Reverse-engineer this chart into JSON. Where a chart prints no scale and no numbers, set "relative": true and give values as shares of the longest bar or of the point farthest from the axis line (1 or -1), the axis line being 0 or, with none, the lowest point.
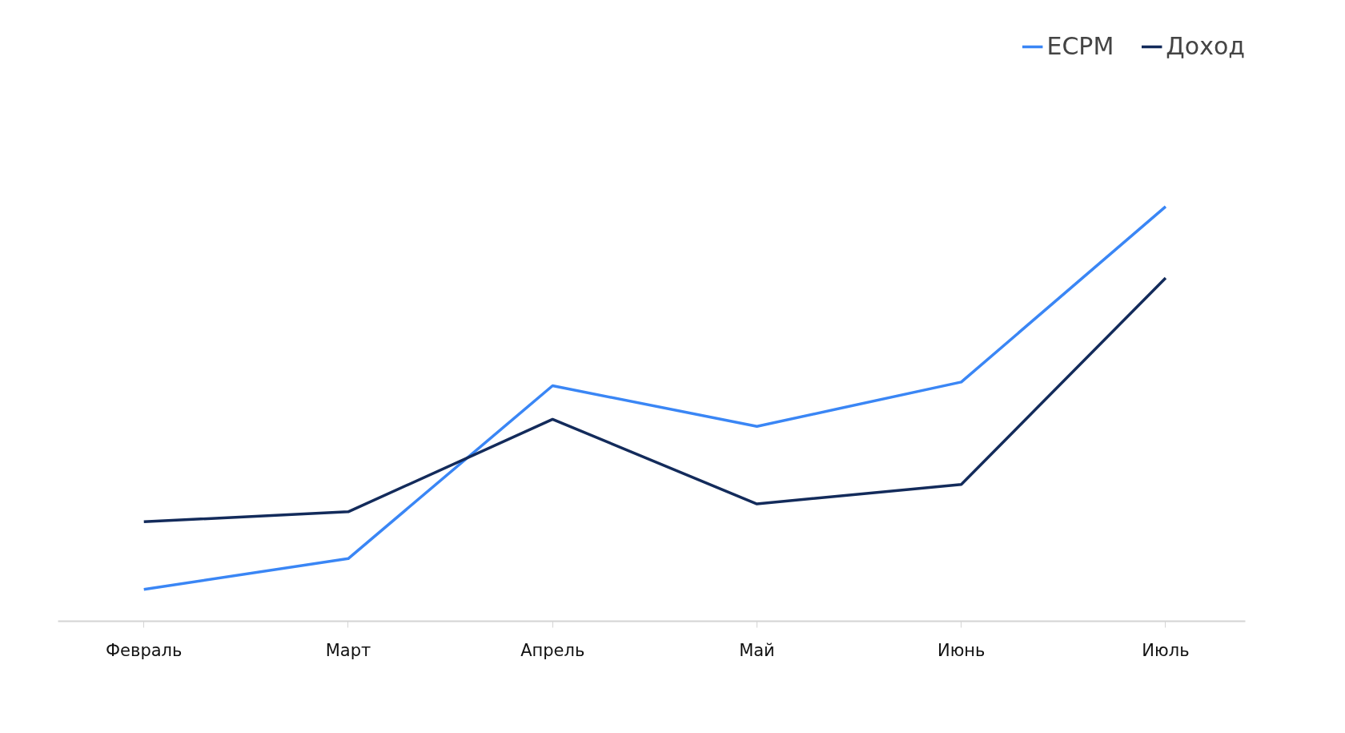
{
  "chart_data": {
    "type": "line",
    "relative": true,
    "categories": [
      "Февраль",
      "Март",
      "Апрель",
      "Май",
      "Июнь",
      "Июль"
    ],
    "series": [
      {
        "name": "ECPM",
        "color": "#3a86f5",
        "values": [
          0.077,
          0.151,
          0.568,
          0.47,
          0.577,
          1
        ]
      },
      {
        "name": "Доход",
        "color": "#132b5b",
        "values": [
          0.24,
          0.264,
          0.487,
          0.283,
          0.33,
          0.828
        ]
      }
    ],
    "legend": "top right",
    "grid": false,
    "marker": "none",
    "line_style": "solid"
  }
}
